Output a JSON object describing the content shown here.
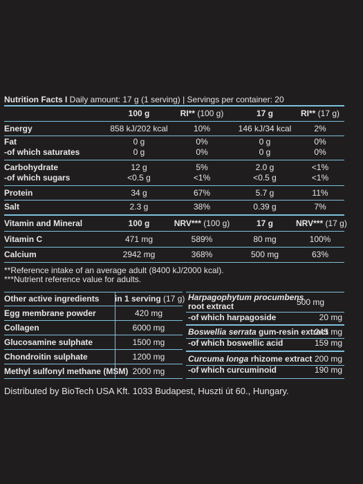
{
  "header": {
    "title_bold": "Nutrition Facts I",
    "title_rest": " Daily amount: 17 g (1 serving) | Servings per container: 20"
  },
  "columns": {
    "c100": "100 g",
    "ri100": "RI** (100 g)",
    "c17": "17 g",
    "ri17": "RI** (17 g)"
  },
  "nutrition": [
    {
      "label": "Energy",
      "bold": true,
      "v100": "858 kJ/202 kcal",
      "ri100": "10%",
      "v17": "146 kJ/34 kcal",
      "ri17": "2%"
    },
    {
      "label": "Fat",
      "bold": true,
      "v100": "0 g",
      "ri100": "0%",
      "v17": "0 g",
      "ri17": "0%"
    },
    {
      "label": "-of which saturates",
      "bold": true,
      "v100": "0 g",
      "ri100": "0%",
      "v17": "0 g",
      "ri17": "0%"
    },
    {
      "label": "Carbohydrate",
      "bold": true,
      "v100": "12 g",
      "ri100": "5%",
      "v17": "2.0 g",
      "ri17": "<1%"
    },
    {
      "label": "-of which sugars",
      "bold": true,
      "v100": "<0.5 g",
      "ri100": "<1%",
      "v17": "<0.5 g",
      "ri17": "<1%"
    },
    {
      "label": "Protein",
      "bold": true,
      "v100": "34 g",
      "ri100": "67%",
      "v17": "5.7 g",
      "ri17": "11%"
    },
    {
      "label": "Salt",
      "bold": true,
      "v100": "2.3 g",
      "ri100": "38%",
      "v17": "0.39 g",
      "ri17": "7%"
    }
  ],
  "vitamins_header": {
    "label": "Vitamin and Mineral",
    "c100": "100 g",
    "nrv100": "NRV*** (100 g)",
    "c17": "17 g",
    "nrv17": "NRV*** (17 g)"
  },
  "vitamins": [
    {
      "label": "Vitamin C",
      "v100": "471 mg",
      "nrv100": "589%",
      "v17": "80 mg",
      "nrv17": "100%"
    },
    {
      "label": "Calcium",
      "v100": "2942 mg",
      "nrv100": "368%",
      "v17": "500 mg",
      "nrv17": "63%"
    }
  ],
  "notes": [
    "**Reference intake of an average adult (8400 kJ/2000 kcal).",
    "***Nutrient reference value for adults."
  ],
  "active": {
    "header_label": "Other active ingredients",
    "header_value": "in 1 serving (17 g)",
    "items": [
      {
        "label": "Egg membrane powder",
        "value": "420 mg"
      },
      {
        "label": "Collagen",
        "value": "6000 mg"
      },
      {
        "label": "Glucosamine sulphate",
        "value": "1500 mg"
      },
      {
        "label": "Chondroitin sulphate",
        "value": "1200 mg"
      },
      {
        "label": "Methyl sulfonyl methane (MSM)",
        "value": "2000 mg"
      }
    ]
  },
  "extracts": {
    "harpago_name": "Harpagophytum procumbens",
    "harpago_rest": "root extract",
    "harpago_value": "500 mg",
    "harpago_sub": "-of which harpagoside",
    "harpago_sub_value": "20 mg",
    "bos_name": "Boswellia serrata",
    "bos_rest": " gum-resin extract",
    "bos_value": "245 mg",
    "bos_sub": "-of which boswellic acid",
    "bos_sub_value": "159 mg",
    "cur_name": "Curcuma longa",
    "cur_rest": " rhizome extract",
    "cur_value": "200 mg",
    "cur_sub": "-of which curcuminoid",
    "cur_sub_value": "190 mg"
  },
  "footer": "Distributed by BioTech USA Kft. 1033 Budapest, Huszti út 60., Hungary.",
  "colors": {
    "background": "#201d1e",
    "accent": "#7fc3df",
    "text": "#e6e6e6"
  }
}
